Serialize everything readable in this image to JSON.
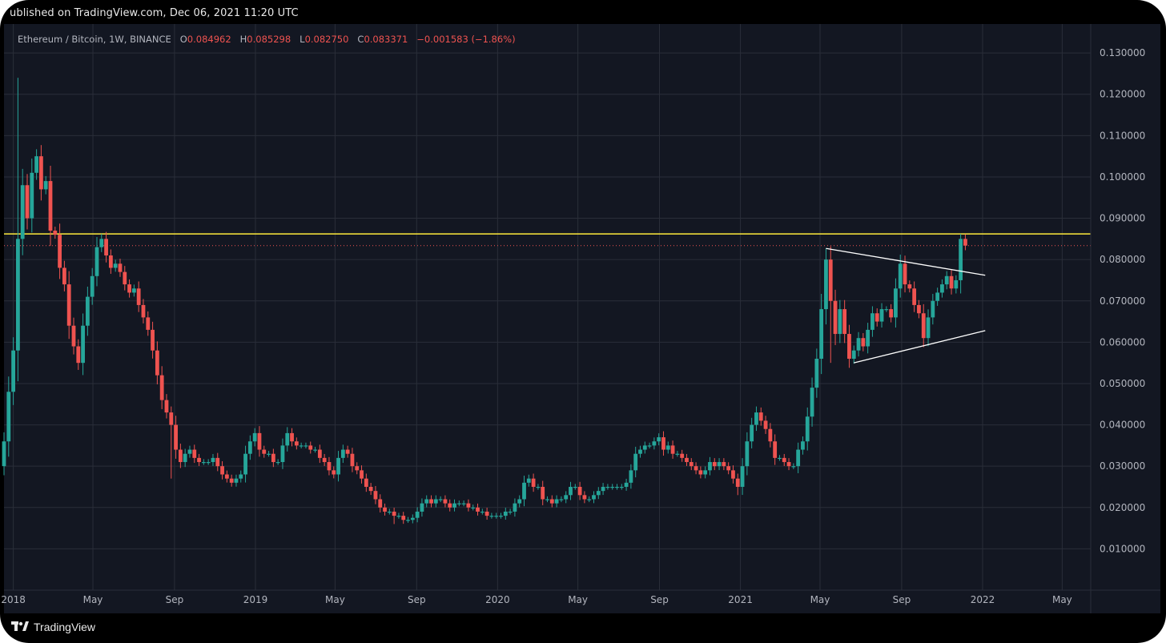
{
  "header": {
    "published": "ublished on TradingView.com, Dec 06, 2021 11:20 UTC"
  },
  "legend": {
    "symbol": "Ethereum / Bitcoin, 1W, BINANCE",
    "o_label": "O",
    "o_value": "0.084962",
    "h_label": "H",
    "h_value": "0.085298",
    "l_label": "L",
    "l_value": "0.082750",
    "c_label": "C",
    "c_value": "0.083371",
    "change": "−0.001583 (−1.86%)"
  },
  "footer": {
    "brand": "TradingView",
    "logo_icon": "tradingview-logo-icon"
  },
  "colors": {
    "background": "#131722",
    "frame": "#000000",
    "grid": "#2a2e39",
    "up": "#26a69a",
    "down": "#ef5350",
    "level": "#ffeb3b",
    "trendline": "#ffffff",
    "text": "#b2b5be"
  },
  "chart_data": {
    "type": "candlestick",
    "symbol": "ETHBTC",
    "timeframe": "1W",
    "ylim": [
      0.0,
      0.137
    ],
    "y_ticks": [
      "0.010000",
      "0.020000",
      "0.030000",
      "0.040000",
      "0.050000",
      "0.060000",
      "0.070000",
      "0.080000",
      "0.090000",
      "0.100000",
      "0.110000",
      "0.120000",
      "0.130000"
    ],
    "x_ticks": [
      {
        "label": "2018",
        "date": "2018-01-01"
      },
      {
        "label": "May",
        "date": "2018-05-01"
      },
      {
        "label": "Sep",
        "date": "2018-09-01"
      },
      {
        "label": "2019",
        "date": "2019-01-01"
      },
      {
        "label": "May",
        "date": "2019-05-01"
      },
      {
        "label": "Sep",
        "date": "2019-09-01"
      },
      {
        "label": "2020",
        "date": "2020-01-01"
      },
      {
        "label": "May",
        "date": "2020-05-01"
      },
      {
        "label": "Sep",
        "date": "2020-09-01"
      },
      {
        "label": "2021",
        "date": "2021-01-01"
      },
      {
        "label": "May",
        "date": "2021-05-01"
      },
      {
        "label": "Sep",
        "date": "2021-09-01"
      },
      {
        "label": "2022",
        "date": "2022-01-01"
      },
      {
        "label": "May",
        "date": "2022-05-01"
      }
    ],
    "x_range": [
      "2017-12-18",
      "2022-06-13"
    ],
    "horizontal_level": 0.0862,
    "last_price": 0.083371,
    "trendlines": [
      {
        "from": {
          "date": "2021-05-10",
          "y": 0.0827
        },
        "to": {
          "date": "2022-01-05",
          "y": 0.0762
        }
      },
      {
        "from": {
          "date": "2021-06-21",
          "y": 0.055
        },
        "to": {
          "date": "2022-01-05",
          "y": 0.0628
        }
      }
    ],
    "closes": [
      [
        "2017-12-18",
        0.036
      ],
      [
        "2017-12-25",
        0.048
      ],
      [
        "2018-01-01",
        0.058
      ],
      [
        "2018-01-08",
        0.085
      ],
      [
        "2018-01-15",
        0.098
      ],
      [
        "2018-01-22",
        0.09
      ],
      [
        "2018-01-29",
        0.101
      ],
      [
        "2018-02-05",
        0.105
      ],
      [
        "2018-02-12",
        0.097
      ],
      [
        "2018-02-19",
        0.099
      ],
      [
        "2018-02-26",
        0.087
      ],
      [
        "2018-03-05",
        0.086
      ],
      [
        "2018-03-12",
        0.078
      ],
      [
        "2018-03-19",
        0.074
      ],
      [
        "2018-03-26",
        0.064
      ],
      [
        "2018-04-02",
        0.059
      ],
      [
        "2018-04-09",
        0.055
      ],
      [
        "2018-04-16",
        0.064
      ],
      [
        "2018-04-23",
        0.071
      ],
      [
        "2018-04-30",
        0.076
      ],
      [
        "2018-05-07",
        0.083
      ],
      [
        "2018-05-14",
        0.085
      ],
      [
        "2018-05-21",
        0.081
      ],
      [
        "2018-05-28",
        0.078
      ],
      [
        "2018-06-04",
        0.079
      ],
      [
        "2018-06-11",
        0.077
      ],
      [
        "2018-06-18",
        0.074
      ],
      [
        "2018-06-25",
        0.072
      ],
      [
        "2018-07-02",
        0.073
      ],
      [
        "2018-07-09",
        0.069
      ],
      [
        "2018-07-16",
        0.066
      ],
      [
        "2018-07-23",
        0.063
      ],
      [
        "2018-07-30",
        0.058
      ],
      [
        "2018-08-06",
        0.052
      ],
      [
        "2018-08-13",
        0.046
      ],
      [
        "2018-08-20",
        0.043
      ],
      [
        "2018-08-27",
        0.04
      ],
      [
        "2018-09-03",
        0.034
      ],
      [
        "2018-09-10",
        0.031
      ],
      [
        "2018-09-17",
        0.033
      ],
      [
        "2018-09-24",
        0.034
      ],
      [
        "2018-10-01",
        0.032
      ],
      [
        "2018-10-08",
        0.031
      ],
      [
        "2018-10-15",
        0.031
      ],
      [
        "2018-10-22",
        0.031
      ],
      [
        "2018-10-29",
        0.032
      ],
      [
        "2018-11-05",
        0.03
      ],
      [
        "2018-11-12",
        0.028
      ],
      [
        "2018-11-19",
        0.027
      ],
      [
        "2018-11-26",
        0.026
      ],
      [
        "2018-12-03",
        0.027
      ],
      [
        "2018-12-10",
        0.028
      ],
      [
        "2018-12-17",
        0.033
      ],
      [
        "2018-12-24",
        0.036
      ],
      [
        "2018-12-31",
        0.038
      ],
      [
        "2019-01-07",
        0.034
      ],
      [
        "2019-01-14",
        0.033
      ],
      [
        "2019-01-21",
        0.033
      ],
      [
        "2019-01-28",
        0.031
      ],
      [
        "2019-02-04",
        0.031
      ],
      [
        "2019-02-11",
        0.035
      ],
      [
        "2019-02-18",
        0.038
      ],
      [
        "2019-02-25",
        0.036
      ],
      [
        "2019-03-04",
        0.035
      ],
      [
        "2019-03-11",
        0.035
      ],
      [
        "2019-03-18",
        0.035
      ],
      [
        "2019-03-25",
        0.034
      ],
      [
        "2019-04-01",
        0.034
      ],
      [
        "2019-04-08",
        0.032
      ],
      [
        "2019-04-15",
        0.031
      ],
      [
        "2019-04-22",
        0.029
      ],
      [
        "2019-04-29",
        0.028
      ],
      [
        "2019-05-06",
        0.032
      ],
      [
        "2019-05-13",
        0.034
      ],
      [
        "2019-05-20",
        0.033
      ],
      [
        "2019-05-27",
        0.03
      ],
      [
        "2019-06-03",
        0.029
      ],
      [
        "2019-06-10",
        0.027
      ],
      [
        "2019-06-17",
        0.025
      ],
      [
        "2019-06-24",
        0.024
      ],
      [
        "2019-07-01",
        0.022
      ],
      [
        "2019-07-08",
        0.02
      ],
      [
        "2019-07-15",
        0.019
      ],
      [
        "2019-07-22",
        0.019
      ],
      [
        "2019-07-29",
        0.018
      ],
      [
        "2019-08-05",
        0.018
      ],
      [
        "2019-08-12",
        0.017
      ],
      [
        "2019-08-19",
        0.017
      ],
      [
        "2019-08-26",
        0.0175
      ],
      [
        "2019-09-02",
        0.019
      ],
      [
        "2019-09-09",
        0.021
      ],
      [
        "2019-09-16",
        0.022
      ],
      [
        "2019-09-23",
        0.021
      ],
      [
        "2019-09-30",
        0.022
      ],
      [
        "2019-10-07",
        0.022
      ],
      [
        "2019-10-14",
        0.021
      ],
      [
        "2019-10-21",
        0.02
      ],
      [
        "2019-10-28",
        0.021
      ],
      [
        "2019-11-04",
        0.021
      ],
      [
        "2019-11-11",
        0.021
      ],
      [
        "2019-11-18",
        0.02
      ],
      [
        "2019-11-25",
        0.02
      ],
      [
        "2019-12-02",
        0.019
      ],
      [
        "2019-12-09",
        0.019
      ],
      [
        "2019-12-16",
        0.018
      ],
      [
        "2019-12-23",
        0.018
      ],
      [
        "2019-12-30",
        0.018
      ],
      [
        "2020-01-06",
        0.018
      ],
      [
        "2020-01-13",
        0.019
      ],
      [
        "2020-01-20",
        0.019
      ],
      [
        "2020-01-27",
        0.021
      ],
      [
        "2020-02-03",
        0.022
      ],
      [
        "2020-02-10",
        0.026
      ],
      [
        "2020-02-17",
        0.027
      ],
      [
        "2020-02-24",
        0.025
      ],
      [
        "2020-03-02",
        0.025
      ],
      [
        "2020-03-09",
        0.022
      ],
      [
        "2020-03-16",
        0.022
      ],
      [
        "2020-03-23",
        0.021
      ],
      [
        "2020-03-30",
        0.022
      ],
      [
        "2020-04-06",
        0.022
      ],
      [
        "2020-04-13",
        0.023
      ],
      [
        "2020-04-20",
        0.025
      ],
      [
        "2020-04-27",
        0.025
      ],
      [
        "2020-05-04",
        0.023
      ],
      [
        "2020-05-11",
        0.022
      ],
      [
        "2020-05-18",
        0.022
      ],
      [
        "2020-05-25",
        0.023
      ],
      [
        "2020-06-01",
        0.024
      ],
      [
        "2020-06-08",
        0.025
      ],
      [
        "2020-06-15",
        0.025
      ],
      [
        "2020-06-22",
        0.025
      ],
      [
        "2020-06-29",
        0.025
      ],
      [
        "2020-07-06",
        0.025
      ],
      [
        "2020-07-13",
        0.026
      ],
      [
        "2020-07-20",
        0.029
      ],
      [
        "2020-07-27",
        0.033
      ],
      [
        "2020-08-03",
        0.034
      ],
      [
        "2020-08-10",
        0.035
      ],
      [
        "2020-08-17",
        0.035
      ],
      [
        "2020-08-24",
        0.036
      ],
      [
        "2020-08-31",
        0.037
      ],
      [
        "2020-09-07",
        0.034
      ],
      [
        "2020-09-14",
        0.035
      ],
      [
        "2020-09-21",
        0.033
      ],
      [
        "2020-09-28",
        0.033
      ],
      [
        "2020-10-05",
        0.032
      ],
      [
        "2020-10-12",
        0.031
      ],
      [
        "2020-10-19",
        0.03
      ],
      [
        "2020-10-26",
        0.029
      ],
      [
        "2020-11-02",
        0.028
      ],
      [
        "2020-11-09",
        0.029
      ],
      [
        "2020-11-16",
        0.031
      ],
      [
        "2020-11-23",
        0.03
      ],
      [
        "2020-11-30",
        0.031
      ],
      [
        "2020-12-07",
        0.03
      ],
      [
        "2020-12-14",
        0.029
      ],
      [
        "2020-12-21",
        0.027
      ],
      [
        "2020-12-28",
        0.025
      ],
      [
        "2021-01-04",
        0.03
      ],
      [
        "2021-01-11",
        0.036
      ],
      [
        "2021-01-18",
        0.04
      ],
      [
        "2021-01-25",
        0.043
      ],
      [
        "2021-02-01",
        0.041
      ],
      [
        "2021-02-08",
        0.039
      ],
      [
        "2021-02-15",
        0.036
      ],
      [
        "2021-02-22",
        0.032
      ],
      [
        "2021-03-01",
        0.032
      ],
      [
        "2021-03-08",
        0.031
      ],
      [
        "2021-03-15",
        0.03
      ],
      [
        "2021-03-22",
        0.03
      ],
      [
        "2021-03-29",
        0.034
      ],
      [
        "2021-04-05",
        0.036
      ],
      [
        "2021-04-12",
        0.042
      ],
      [
        "2021-04-19",
        0.049
      ],
      [
        "2021-04-26",
        0.056
      ],
      [
        "2021-05-03",
        0.068
      ],
      [
        "2021-05-10",
        0.08
      ],
      [
        "2021-05-17",
        0.07
      ],
      [
        "2021-05-24",
        0.062
      ],
      [
        "2021-05-31",
        0.068
      ],
      [
        "2021-06-07",
        0.062
      ],
      [
        "2021-06-14",
        0.056
      ],
      [
        "2021-06-21",
        0.058
      ],
      [
        "2021-06-28",
        0.061
      ],
      [
        "2021-07-05",
        0.059
      ],
      [
        "2021-07-12",
        0.063
      ],
      [
        "2021-07-19",
        0.067
      ],
      [
        "2021-07-26",
        0.065
      ],
      [
        "2021-08-02",
        0.068
      ],
      [
        "2021-08-09",
        0.068
      ],
      [
        "2021-08-16",
        0.066
      ],
      [
        "2021-08-23",
        0.073
      ],
      [
        "2021-08-30",
        0.079
      ],
      [
        "2021-09-06",
        0.074
      ],
      [
        "2021-09-13",
        0.073
      ],
      [
        "2021-09-20",
        0.069
      ],
      [
        "2021-09-27",
        0.067
      ],
      [
        "2021-10-04",
        0.061
      ],
      [
        "2021-10-11",
        0.066
      ],
      [
        "2021-10-18",
        0.07
      ],
      [
        "2021-10-25",
        0.072
      ],
      [
        "2021-11-01",
        0.074
      ],
      [
        "2021-11-08",
        0.076
      ],
      [
        "2021-11-15",
        0.073
      ],
      [
        "2021-11-22",
        0.075
      ],
      [
        "2021-11-29",
        0.085
      ],
      [
        "2021-12-06",
        0.08337
      ]
    ]
  }
}
